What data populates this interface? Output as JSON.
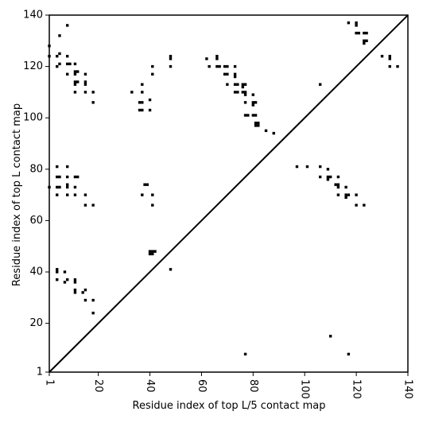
{
  "chart_data": {
    "type": "scatter",
    "title": "",
    "xlabel": "Residue index of top L/5 contact map",
    "ylabel": "Residue index of top L contact map",
    "xlim": [
      1,
      140
    ],
    "ylim": [
      1,
      140
    ],
    "xticks": [
      1,
      20,
      40,
      60,
      80,
      100,
      120,
      140
    ],
    "yticks": [
      1,
      20,
      40,
      60,
      80,
      100,
      120,
      140
    ],
    "x_tick_labels": [
      "1",
      "20",
      "40",
      "60",
      "80",
      "100",
      "120",
      "140"
    ],
    "y_tick_labels": [
      "1",
      "20",
      "40",
      "60",
      "80",
      "100",
      "120",
      "140"
    ],
    "grid": false,
    "diagonal_line": [
      [
        1,
        1
      ],
      [
        140,
        140
      ]
    ],
    "marker": "square",
    "marker_color": "#000000",
    "points": [
      [
        1,
        128
      ],
      [
        1,
        124
      ],
      [
        5,
        132
      ],
      [
        4,
        124
      ],
      [
        5,
        125
      ],
      [
        4,
        120
      ],
      [
        5,
        121
      ],
      [
        8,
        136
      ],
      [
        8,
        124
      ],
      [
        8,
        121
      ],
      [
        9,
        121
      ],
      [
        8,
        117
      ],
      [
        11,
        121
      ],
      [
        11,
        118
      ],
      [
        12,
        118
      ],
      [
        11,
        117
      ],
      [
        11,
        114
      ],
      [
        12,
        114
      ],
      [
        11,
        113
      ],
      [
        11,
        110
      ],
      [
        15,
        117
      ],
      [
        15,
        114
      ],
      [
        15,
        113
      ],
      [
        15,
        110
      ],
      [
        18,
        110
      ],
      [
        18,
        106
      ],
      [
        33,
        110
      ],
      [
        36,
        106
      ],
      [
        37,
        106
      ],
      [
        37,
        113
      ],
      [
        37,
        110
      ],
      [
        36,
        103
      ],
      [
        37,
        103
      ],
      [
        40,
        107
      ],
      [
        40,
        103
      ],
      [
        41,
        120
      ],
      [
        41,
        117
      ],
      [
        48,
        124
      ],
      [
        48,
        123
      ],
      [
        48,
        120
      ],
      [
        62,
        123
      ],
      [
        63,
        120
      ],
      [
        66,
        124
      ],
      [
        66,
        123
      ],
      [
        66,
        120
      ],
      [
        67,
        120
      ],
      [
        69,
        120
      ],
      [
        70,
        120
      ],
      [
        69,
        117
      ],
      [
        70,
        117
      ],
      [
        70,
        113
      ],
      [
        73,
        120
      ],
      [
        73,
        117
      ],
      [
        73,
        116
      ],
      [
        73,
        113
      ],
      [
        74,
        113
      ],
      [
        73,
        110
      ],
      [
        74,
        110
      ],
      [
        76,
        113
      ],
      [
        76,
        112
      ],
      [
        77,
        113
      ],
      [
        76,
        110
      ],
      [
        77,
        110
      ],
      [
        77,
        109
      ],
      [
        77,
        106
      ],
      [
        80,
        109
      ],
      [
        80,
        106
      ],
      [
        80,
        105
      ],
      [
        81,
        106
      ],
      [
        77,
        101
      ],
      [
        78,
        101
      ],
      [
        80,
        101
      ],
      [
        81,
        101
      ],
      [
        81,
        98
      ],
      [
        81,
        97
      ],
      [
        82,
        98
      ],
      [
        82,
        97
      ],
      [
        85,
        95
      ],
      [
        88,
        94
      ],
      [
        106,
        113
      ],
      [
        117,
        137
      ],
      [
        120,
        137
      ],
      [
        120,
        136
      ],
      [
        120,
        133
      ],
      [
        121,
        133
      ],
      [
        123,
        133
      ],
      [
        124,
        133
      ],
      [
        123,
        130
      ],
      [
        123,
        129
      ],
      [
        124,
        130
      ],
      [
        130,
        124
      ],
      [
        133,
        124
      ],
      [
        133,
        123
      ],
      [
        133,
        120
      ],
      [
        136,
        120
      ],
      [
        1,
        73
      ],
      [
        4,
        81
      ],
      [
        4,
        77
      ],
      [
        5,
        77
      ],
      [
        4,
        73
      ],
      [
        5,
        73
      ],
      [
        4,
        70
      ],
      [
        8,
        81
      ],
      [
        8,
        77
      ],
      [
        8,
        74
      ],
      [
        8,
        73
      ],
      [
        8,
        70
      ],
      [
        11,
        77
      ],
      [
        12,
        77
      ],
      [
        11,
        73
      ],
      [
        11,
        70
      ],
      [
        15,
        70
      ],
      [
        15,
        66
      ],
      [
        18,
        66
      ],
      [
        37,
        70
      ],
      [
        38,
        74
      ],
      [
        39,
        74
      ],
      [
        41,
        70
      ],
      [
        41,
        66
      ],
      [
        40,
        48
      ],
      [
        40,
        47
      ],
      [
        41,
        48
      ],
      [
        41,
        47
      ],
      [
        42,
        48
      ],
      [
        48,
        41
      ],
      [
        4,
        41
      ],
      [
        4,
        40
      ],
      [
        7,
        40
      ],
      [
        4,
        37
      ],
      [
        7,
        36
      ],
      [
        8,
        37
      ],
      [
        11,
        37
      ],
      [
        11,
        36
      ],
      [
        11,
        33
      ],
      [
        11,
        32
      ],
      [
        14,
        32
      ],
      [
        15,
        33
      ],
      [
        15,
        29
      ],
      [
        18,
        29
      ],
      [
        18,
        24
      ],
      [
        97,
        81
      ],
      [
        101,
        81
      ],
      [
        106,
        81
      ],
      [
        106,
        77
      ],
      [
        109,
        80
      ],
      [
        109,
        77
      ],
      [
        109,
        76
      ],
      [
        110,
        77
      ],
      [
        113,
        77
      ],
      [
        112,
        74
      ],
      [
        113,
        74
      ],
      [
        113,
        73
      ],
      [
        116,
        73
      ],
      [
        113,
        70
      ],
      [
        116,
        70
      ],
      [
        117,
        70
      ],
      [
        116,
        69
      ],
      [
        120,
        70
      ],
      [
        120,
        66
      ],
      [
        123,
        66
      ],
      [
        77,
        8
      ],
      [
        110,
        15
      ],
      [
        117,
        8
      ]
    ]
  }
}
